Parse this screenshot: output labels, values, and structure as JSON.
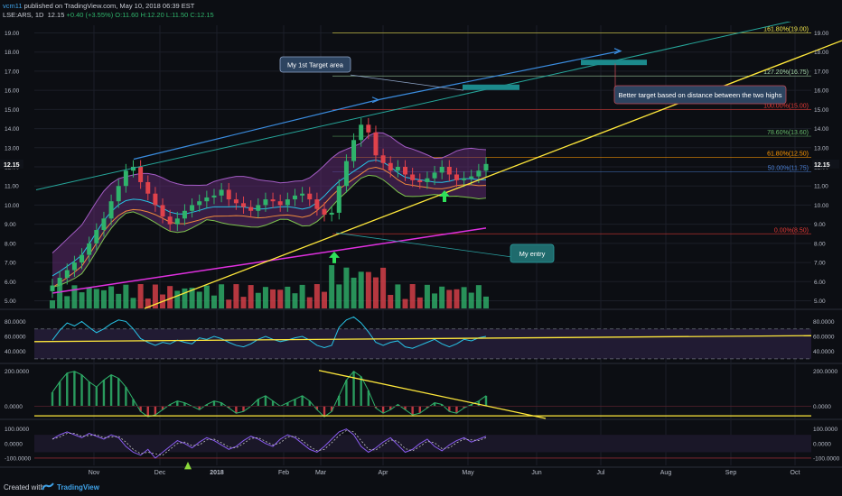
{
  "header": {
    "user": "vcm11",
    "published": "published on TradingView.com, May 10, 2018 06:39 EST",
    "symbol": "LSE:ARS, 1D",
    "price": "12.15",
    "change": "+0.40 (+3.55%)",
    "ohlc": "O:11.60 H:12.20 L:11.50 C:12.15"
  },
  "footer": {
    "created_with": "Created with",
    "brand": "TradingView"
  },
  "annotations": {
    "target1": "My 1st Target area",
    "better_target": "Better target based on distance between the two highs",
    "entry": "My entry"
  },
  "colors": {
    "background": "#0c0e13",
    "up_candle": "#2fb36b",
    "down_candle": "#e0424b",
    "trend_line": "#ffe83b",
    "channel_line": "#3b8de0",
    "callout": "#1f6b6d",
    "rsi_line": "#27c4e6",
    "band_fill": "#5c2a6e",
    "ma_magenta": "#e030e0",
    "target_box": "#1c8a8c"
  },
  "chart_data": [
    {
      "type": "candlestick",
      "panel": "price",
      "x_labels": [
        "Nov",
        "Dec",
        "2018",
        "Feb",
        "Mar",
        "Apr",
        "May",
        "Jun",
        "Jul",
        "Aug",
        "Sep",
        "Oct"
      ],
      "y_ticks": [
        "19.00",
        "18.00",
        "17.00",
        "16.00",
        "15.00",
        "14.00",
        "13.00",
        "12.00",
        "11.00",
        "10.00",
        "9.00",
        "8.00",
        "7.00",
        "6.00",
        "5.00"
      ],
      "ylim": [
        4.6,
        19.4
      ],
      "last_price": "12.15",
      "price_path": [
        5.8,
        6.2,
        6.6,
        7.0,
        7.4,
        8.0,
        8.7,
        9.3,
        10.2,
        11.0,
        11.8,
        12.0,
        11.2,
        10.6,
        10.0,
        9.4,
        9.0,
        9.3,
        9.7,
        10.0,
        10.2,
        10.4,
        10.5,
        10.8,
        10.3,
        10.1,
        9.9,
        9.7,
        10.0,
        10.3,
        10.2,
        10.0,
        10.3,
        10.5,
        10.6,
        10.3,
        9.8,
        9.5,
        9.6,
        11.0,
        12.3,
        13.4,
        14.2,
        13.8,
        12.6,
        12.2,
        11.8,
        12.0,
        11.6,
        11.3,
        11.2,
        11.4,
        11.7,
        12.0,
        11.6,
        11.3,
        11.4,
        11.5,
        11.8,
        12.15
      ],
      "fib_levels": [
        {
          "label": "161.80%(19.00)",
          "price": 19.0,
          "color": "#f5e94b"
        },
        {
          "label": "127.20%(16.75)",
          "price": 16.75,
          "color": "#a5d6a7"
        },
        {
          "label": "100.00%(15.00)",
          "price": 15.0,
          "color": "#e53935"
        },
        {
          "label": "78.60%(13.60)",
          "price": 13.6,
          "color": "#66bb6a"
        },
        {
          "label": "61.80%(12.50)",
          "price": 12.5,
          "color": "#ff9800"
        },
        {
          "label": "50.00%(11.75)",
          "price": 11.75,
          "color": "#4a7fd4"
        },
        {
          "label": "0.00%(8.50)",
          "price": 8.5,
          "color": "#e53935"
        }
      ]
    },
    {
      "type": "line",
      "panel": "rsi",
      "y_ticks": [
        "80.0000",
        "60.0000",
        "40.0000"
      ],
      "ylim": [
        25,
        95
      ],
      "values": [
        55,
        68,
        78,
        74,
        80,
        72,
        65,
        70,
        77,
        82,
        80,
        70,
        57,
        52,
        48,
        52,
        50,
        55,
        52,
        50,
        58,
        56,
        60,
        57,
        52,
        48,
        46,
        50,
        56,
        60,
        56,
        53,
        55,
        58,
        60,
        55,
        48,
        45,
        48,
        72,
        82,
        86,
        78,
        66,
        52,
        48,
        52,
        54,
        46,
        44,
        48,
        52,
        56,
        50,
        46,
        50,
        56,
        54,
        58,
        60
      ]
    },
    {
      "type": "bar",
      "panel": "momentum",
      "y_ticks": [
        "200.0000",
        "0.0000"
      ],
      "ylim": [
        -70,
        240
      ],
      "values": [
        80,
        140,
        190,
        200,
        180,
        140,
        110,
        150,
        180,
        160,
        110,
        40,
        -30,
        -60,
        -50,
        -20,
        10,
        30,
        20,
        0,
        -20,
        10,
        30,
        20,
        -10,
        -40,
        -30,
        0,
        40,
        60,
        30,
        0,
        20,
        40,
        60,
        30,
        -20,
        -60,
        -30,
        60,
        150,
        200,
        170,
        90,
        -10,
        -40,
        -20,
        10,
        -20,
        -50,
        -40,
        -10,
        20,
        10,
        -30,
        -40,
        -10,
        10,
        30,
        60
      ]
    },
    {
      "type": "line",
      "panel": "oscillator",
      "y_ticks": [
        "100.0000",
        "0.0000",
        "-100.0000"
      ],
      "ylim": [
        -150,
        160
      ],
      "values": [
        30,
        60,
        80,
        60,
        40,
        70,
        50,
        30,
        60,
        40,
        -20,
        -60,
        -80,
        -40,
        -100,
        -60,
        -20,
        20,
        0,
        -30,
        10,
        40,
        20,
        -10,
        -40,
        -20,
        20,
        50,
        30,
        0,
        -20,
        30,
        60,
        40,
        0,
        -40,
        -60,
        -20,
        30,
        80,
        100,
        60,
        -20,
        -60,
        -30,
        10,
        40,
        -10,
        -60,
        -40,
        0,
        30,
        -20,
        -50,
        -10,
        20,
        40,
        10,
        30,
        50
      ]
    }
  ]
}
